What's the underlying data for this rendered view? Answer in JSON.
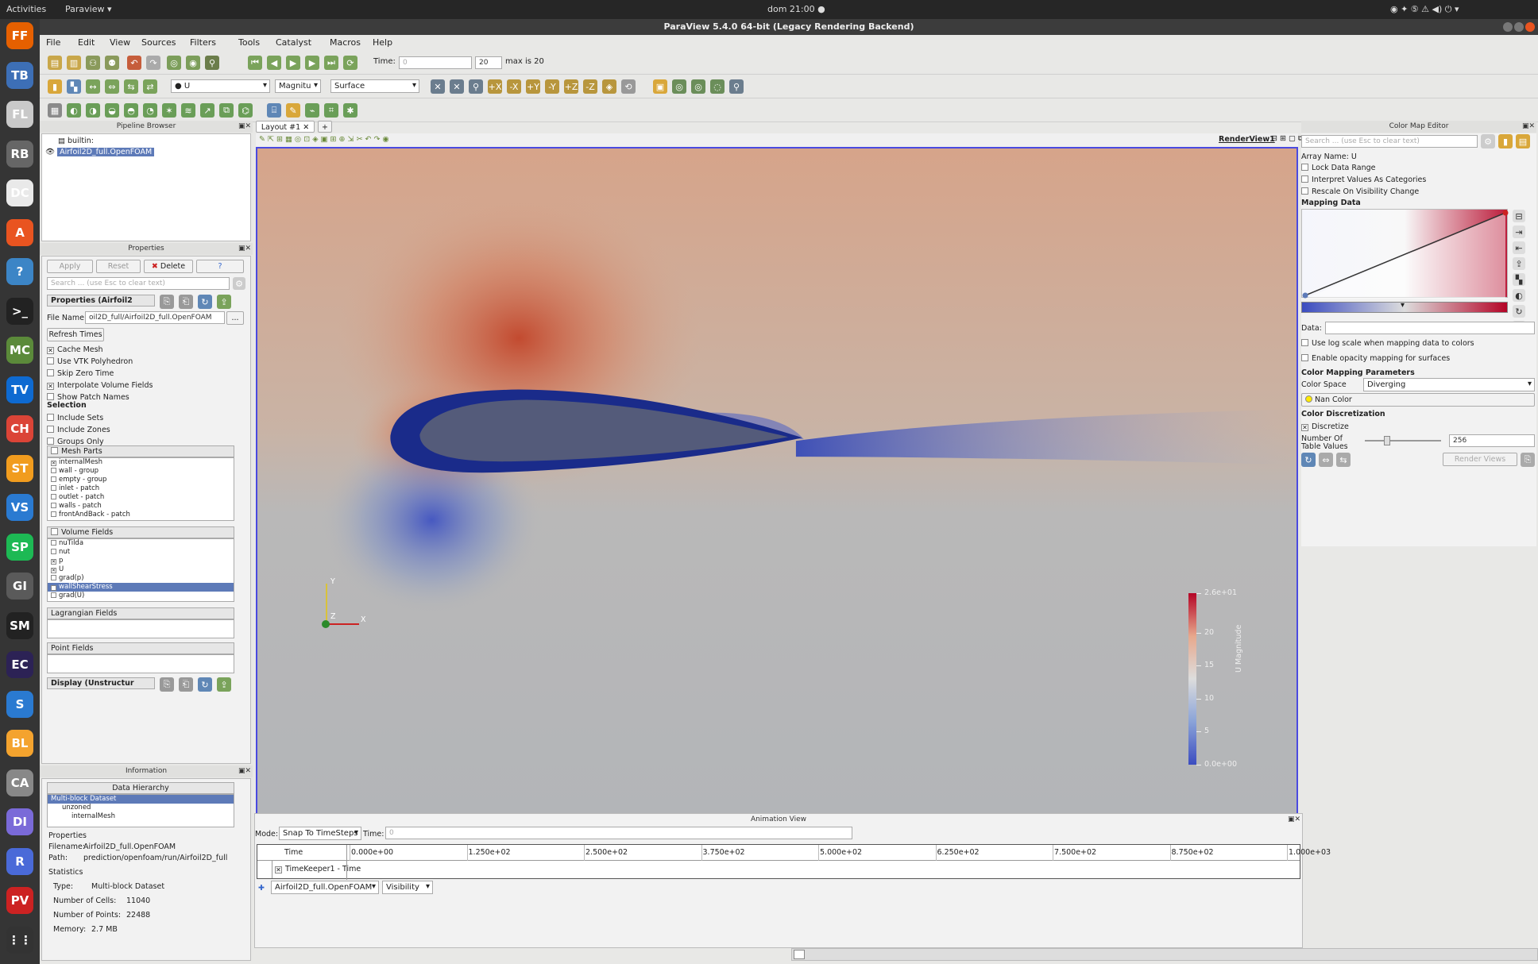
{
  "system": {
    "activities": "Activities",
    "app_menu": "Paraview ▾",
    "clock": "dom 21:00 ●"
  },
  "dock": [
    "FF",
    "TB",
    "FL",
    "RB",
    "DC",
    "A",
    "?",
    ">_",
    "MC",
    "TV",
    "CH",
    "ST",
    "VS",
    "SP",
    "GI",
    "SM",
    "EC",
    "S",
    "BL",
    "CA",
    "DI",
    "R",
    "PV",
    "⋮⋮"
  ],
  "window": {
    "title": "ParaView 5.4.0 64-bit (Legacy Rendering Backend)"
  },
  "menu": [
    "File",
    "Edit",
    "View",
    "Sources",
    "Filters",
    "Tools",
    "Catalyst",
    "Macros",
    "Help"
  ],
  "toolbar": {
    "time_label": "Time:",
    "time_value": "0",
    "step_value": "20",
    "max_label": "max is 20",
    "var_select": "● U",
    "comp_select": "Magnitu",
    "repr_select": "Surface"
  },
  "pipeline": {
    "title": "Pipeline Browser",
    "root": "builtin:",
    "source": "Airfoil2D_full.OpenFOAM"
  },
  "properties": {
    "title": "Properties",
    "apply": "Apply",
    "reset": "Reset",
    "delete": "Delete",
    "help": "?",
    "search_placeholder": "Search ... (use Esc to clear text)",
    "section": "Properties (Airfoil2",
    "file_label": "File Name",
    "file_value": "oil2D_full/Airfoil2D_full.OpenFOAM",
    "refresh": "Refresh Times",
    "checks": [
      {
        "label": "Cache Mesh",
        "on": true
      },
      {
        "label": "Use VTK Polyhedron",
        "on": false
      },
      {
        "label": "Skip Zero Time",
        "on": false
      },
      {
        "label": "Interpolate Volume Fields",
        "on": true
      },
      {
        "label": "Show Patch Names",
        "on": false
      }
    ],
    "selection_title": "Selection",
    "selection_checks": [
      {
        "label": "Include Sets",
        "on": false
      },
      {
        "label": "Include Zones",
        "on": false
      },
      {
        "label": "Groups Only",
        "on": false
      }
    ],
    "mesh_parts_title": "Mesh Parts",
    "mesh_parts": [
      "internalMesh",
      "wall - group",
      "empty - group",
      "inlet - patch",
      "outlet - patch",
      "walls - patch",
      "frontAndBack - patch"
    ],
    "volume_fields_title": "Volume Fields",
    "volume_fields": [
      "nuTilda",
      "nut",
      "p",
      "U",
      "grad(p)",
      "wallShearStress",
      "grad(U)"
    ],
    "lagrangian_title": "Lagrangian Fields",
    "point_fields_title": "Point Fields",
    "display_section": "Display (Unstructur"
  },
  "information": {
    "title": "Information",
    "hierarchy_title": "Data Hierarchy",
    "hierarchy": [
      "Multi-block Dataset",
      "unzoned",
      "internalMesh"
    ],
    "props_title": "Properties",
    "filename_label": "Filename:",
    "filename": "Airfoil2D_full.OpenFOAM",
    "path_label": "Path:",
    "path": "prediction/openfoam/run/Airfoil2D_full",
    "stats_title": "Statistics",
    "type_label": "Type:",
    "type": "Multi-block Dataset",
    "cells_label": "Number of Cells:",
    "cells": "11040",
    "points_label": "Number of Points:",
    "points": "22488",
    "memory_label": "Memory:",
    "memory": "2.7 MB"
  },
  "layout": {
    "tab": "Layout #1",
    "add": "+",
    "view_name": "RenderView1"
  },
  "colorbar": {
    "title": "U Magnitude",
    "ticks": [
      "2.6e+01",
      "20",
      "15",
      "10",
      "5",
      "0.0e+00"
    ],
    "ticks_values": [
      26,
      20,
      15,
      10,
      5,
      0
    ],
    "min": 0,
    "max": 26,
    "colors": {
      "low": "#3b4cc0",
      "mid": "#dddddd",
      "high": "#b40426"
    }
  },
  "axes": {
    "x": "X",
    "y": "Y",
    "z": "Z"
  },
  "colormap": {
    "title": "Color Map Editor",
    "search_placeholder": "Search ... (use Esc to clear text)",
    "array_name": "Array Name: U",
    "checks": [
      {
        "label": "Lock Data Range",
        "on": false
      },
      {
        "label": "Interpret Values As Categories",
        "on": false
      },
      {
        "label": "Rescale On Visibility Change",
        "on": false
      }
    ],
    "mapping_title": "Mapping Data",
    "data_label": "Data:",
    "log_check": "Use log scale when mapping data to colors",
    "opacity_check": "Enable opacity mapping for surfaces",
    "params_title": "Color Mapping Parameters",
    "space_label": "Color Space",
    "space_value": "Diverging",
    "nan_label": "Nan Color",
    "disc_title": "Color Discretization",
    "disc_check": "Discretize",
    "table_label": "Number Of Table Values",
    "table_value": "256",
    "render_btn": "Render Views"
  },
  "animation": {
    "title": "Animation View",
    "mode_label": "Mode:",
    "mode_value": "Snap To TimeSteps",
    "time_label": "Time:",
    "time_value": "0",
    "col_time": "Time",
    "ticks": [
      "0.000e+00",
      "1.250e+02",
      "2.500e+02",
      "3.750e+02",
      "5.000e+02",
      "6.250e+02",
      "7.500e+02",
      "8.750e+02",
      "1.000e+03"
    ],
    "keeper": "TimeKeeper1 - Time",
    "source_select": "Airfoil2D_full.OpenFOAM",
    "prop_select": "Visibility"
  }
}
